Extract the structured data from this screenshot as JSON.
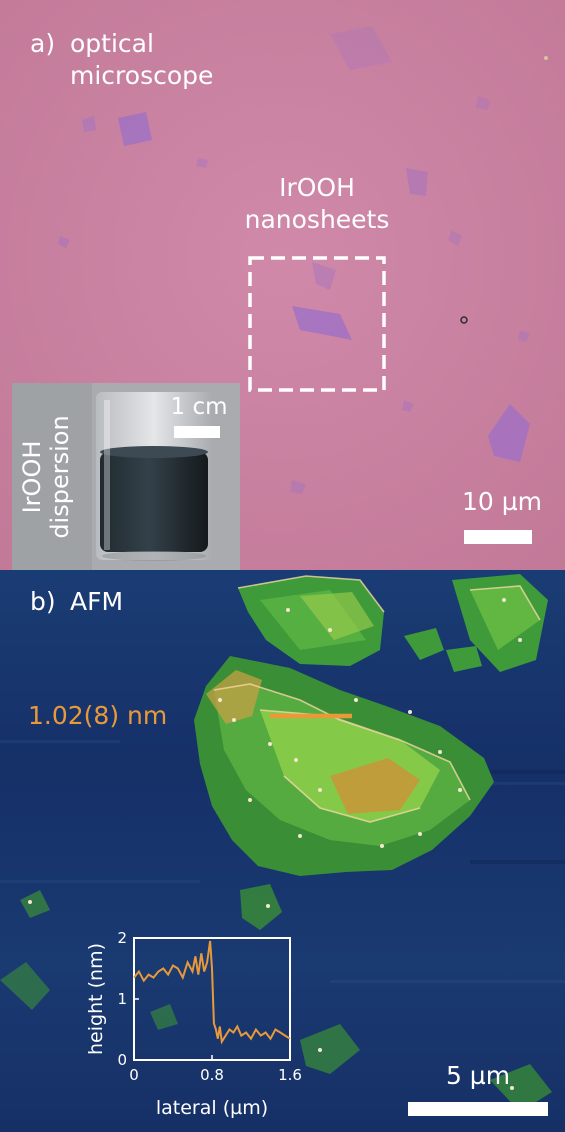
{
  "panel_a": {
    "label": "a)",
    "title_line1": "optical",
    "title_line2": "microscope",
    "annotation_line1": "IrOOH",
    "annotation_line2": "nanosheets",
    "scale_bar_label": "10 µm",
    "inset": {
      "caption_line1": "IrOOH",
      "caption_line2": "dispersion",
      "scale_bar_label": "1 cm"
    }
  },
  "panel_b": {
    "label": "b)",
    "title": "AFM",
    "measurement_label": "1.02(8) nm",
    "scale_bar_label": "5 µm"
  },
  "colors": {
    "optical_bg": "#c97fa2",
    "flake_purple": "#9b6fc9",
    "afm_bg": "#17346e",
    "afm_flake": "#3f9b3a",
    "afm_flake_light": "#8ccf4a",
    "highlight_orange": "#e89a3a"
  },
  "chart_data": {
    "type": "line",
    "title": "",
    "xlabel": "lateral (µm)",
    "ylabel": "height (nm)",
    "xlim": [
      0,
      1.6
    ],
    "ylim": [
      0,
      2
    ],
    "xticks": [
      0,
      0.8,
      1.6
    ],
    "xtick_labels": [
      "0",
      "0.8",
      "1.6"
    ],
    "yticks": [
      0,
      1,
      2
    ],
    "ytick_labels": [
      "0",
      "1",
      "2"
    ],
    "grid": false,
    "series": [
      {
        "x": [
          0.0,
          0.05,
          0.1,
          0.15,
          0.2,
          0.25,
          0.3,
          0.35,
          0.4,
          0.45,
          0.5,
          0.55,
          0.6,
          0.63,
          0.66,
          0.69,
          0.72,
          0.75,
          0.78,
          0.8,
          0.82,
          0.84,
          0.86,
          0.88,
          0.9,
          0.94,
          0.98,
          1.02,
          1.06,
          1.1,
          1.15,
          1.2,
          1.25,
          1.3,
          1.35,
          1.4,
          1.45,
          1.5,
          1.55,
          1.6
        ],
        "y": [
          1.35,
          1.45,
          1.3,
          1.4,
          1.35,
          1.45,
          1.5,
          1.4,
          1.55,
          1.5,
          1.35,
          1.6,
          1.45,
          1.7,
          1.4,
          1.75,
          1.45,
          1.6,
          1.95,
          1.5,
          0.6,
          0.5,
          0.35,
          0.55,
          0.3,
          0.4,
          0.5,
          0.45,
          0.55,
          0.4,
          0.45,
          0.35,
          0.5,
          0.4,
          0.45,
          0.35,
          0.5,
          0.45,
          0.4,
          0.35
        ]
      }
    ]
  }
}
